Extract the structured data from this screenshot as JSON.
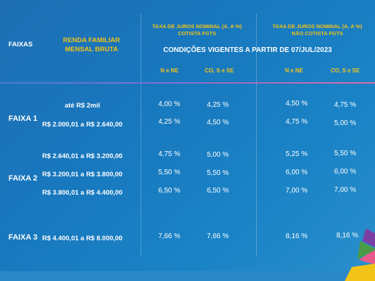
{
  "header": {
    "faixas": "FAIXAS",
    "renda_line1": "RENDA FAMILIAR",
    "renda_line2": "MENSAL BRUTA",
    "taxa_cotista_line1": "TAXA DE JUROS NOMINAL (A. A %)",
    "taxa_cotista_line2": "COTISTA FGTS",
    "taxa_nao_cotista_line1": "TAXA DE JUROS NOMINAL (A. A %)",
    "taxa_nao_cotista_line2": "NÃO COTISTA FGTS",
    "condicoes": "CONDIÇÕES VIGENTES A PARTIR DE 07/JUL/2023",
    "col_n_ne_1": "N e NE",
    "col_co_s_se_1": "CO, S e SE",
    "col_n_ne_2": "N e NE",
    "col_co_s_se_2": "CO, S e SE"
  },
  "rows": [
    {
      "faixa": "",
      "range": "até R$ 2mil",
      "v1": "4,00 %",
      "v2": "4,25 %",
      "v3": "4,50 %",
      "v4": "4,75 %"
    },
    {
      "faixa": "FAIXA 1",
      "range": "R$ 2.000,01 a R$ 2.640,00",
      "v1": "4,25 %",
      "v2": "4,50 %",
      "v3": "4,75 %",
      "v4": "5,00 %"
    },
    {
      "faixa": "",
      "range": "R$ 2.640,01 a R$ 3.200,00",
      "v1": "4,75 %",
      "v2": "5,00 %",
      "v3": "5,25 %",
      "v4": "5,50 %"
    },
    {
      "faixa": "FAIXA 2",
      "range": "R$ 3.200,01 a R$ 3.800,00",
      "v1": "5,50 %",
      "v2": "5,50 %",
      "v3": "6,00 %",
      "v4": "6,00 %"
    },
    {
      "faixa": "",
      "range": "R$ 3.800,01 a R$ 4.400,00",
      "v1": "6,50 %",
      "v2": "6,50 %",
      "v3": "7,00 %",
      "v4": "7,00 %"
    },
    {
      "faixa": "FAIXA 3",
      "range": "R$ 4.400,01 a R$ 8.000,00",
      "v1": "7,66 %",
      "v2": "7,66 %",
      "v3": "8,16 %",
      "v4": "8,16 %"
    }
  ],
  "colors": {
    "accent_yellow": "#f2c318",
    "background": "#1877bd",
    "divider_start": "#4d7ed7",
    "divider_end": "#e06aa4"
  }
}
